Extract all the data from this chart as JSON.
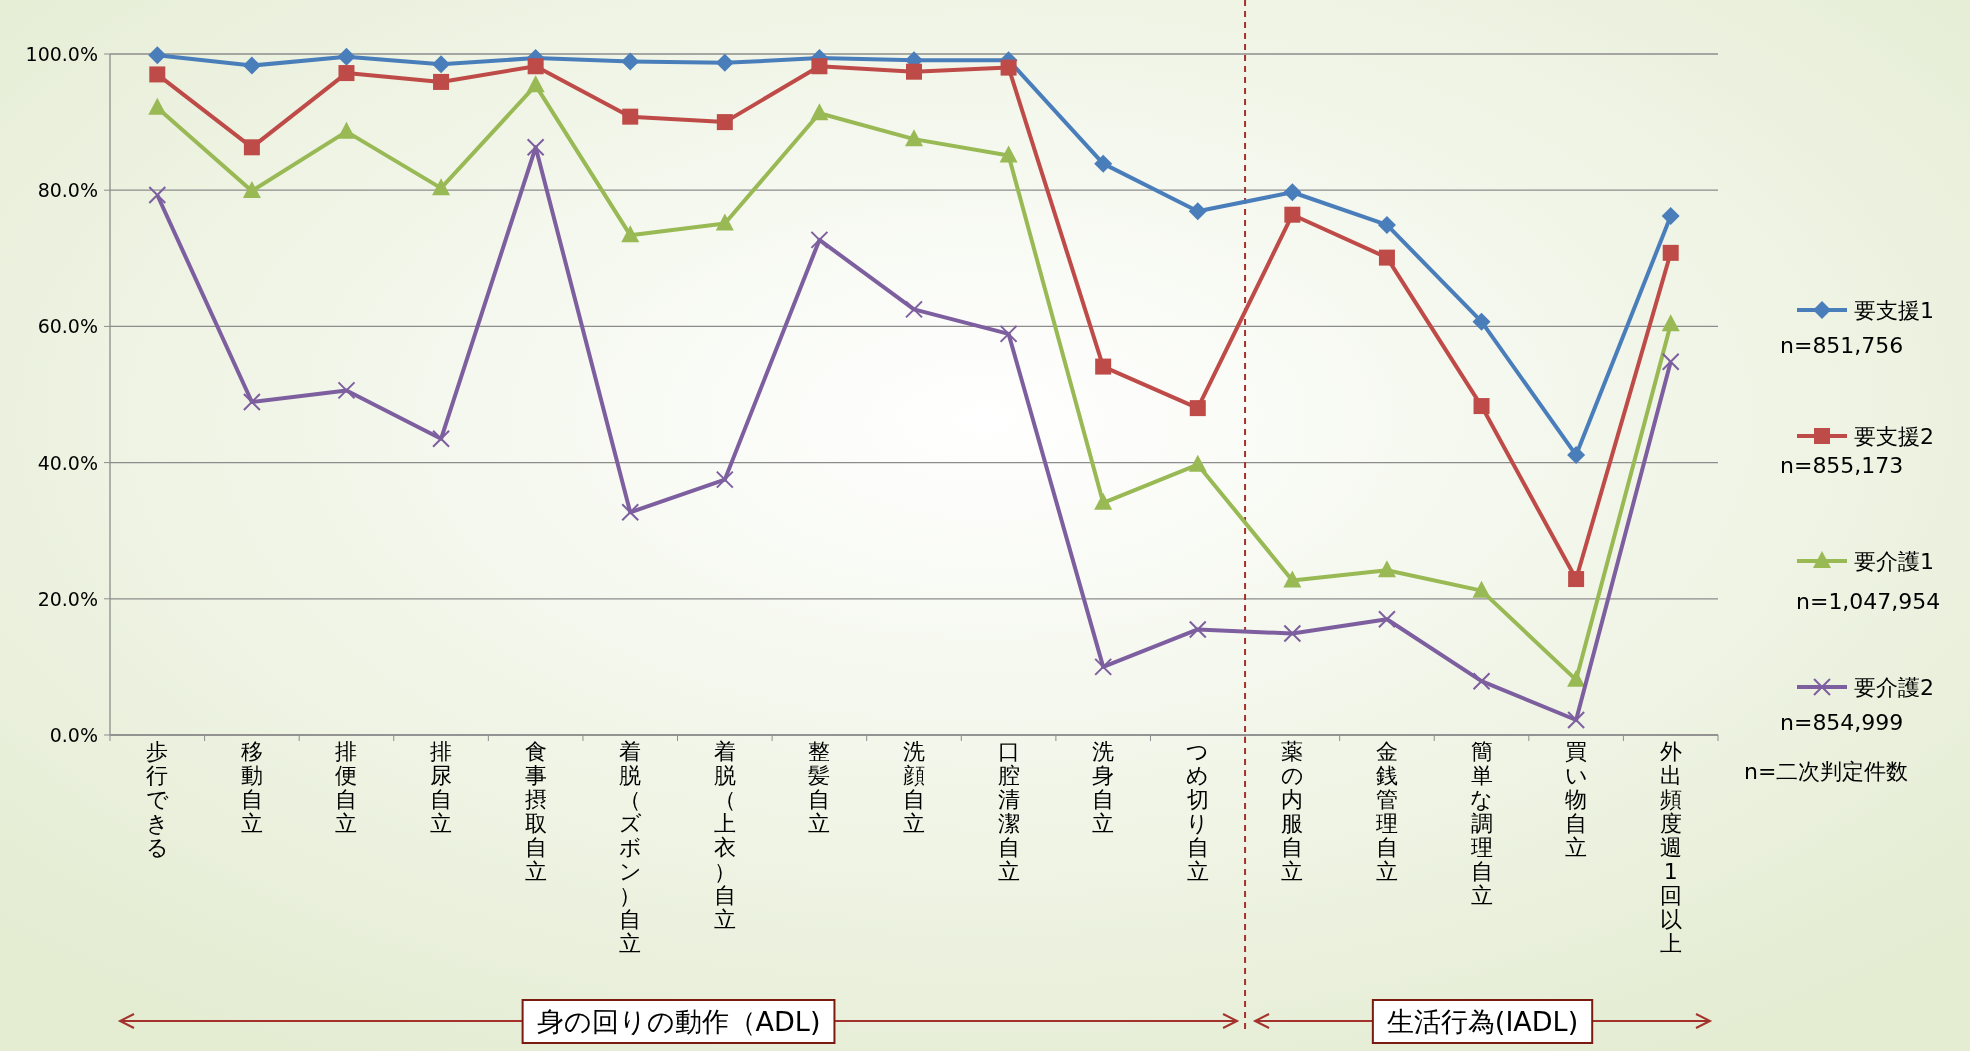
{
  "chart_data": {
    "type": "line",
    "categories": [
      "歩行できる",
      "移動自立",
      "排便自立",
      "排尿自立",
      "食事摂取自立",
      "着脱（ズボン）自立",
      "着脱（上衣）自立",
      "整髪自立",
      "洗顔自立",
      "口腔清潔自立",
      "洗身自立",
      "つめ切り自立",
      "薬の内服自立",
      "金銭管理自立",
      "簡単な調理自立",
      "買い物自立",
      "外出頻度週1回以上"
    ],
    "series": [
      {
        "name": "要支援1",
        "color": "#4a7ebb",
        "marker": "diamond",
        "values": [
          99.8,
          98.3,
          99.6,
          98.5,
          99.4,
          98.9,
          98.7,
          99.4,
          99.1,
          99.1,
          83.9,
          76.9,
          79.7,
          74.9,
          60.7,
          41.1,
          76.2
        ]
      },
      {
        "name": "要支援2",
        "color": "#be4b48",
        "marker": "square",
        "values": [
          97.0,
          86.3,
          97.2,
          95.9,
          98.2,
          90.8,
          90.0,
          98.2,
          97.4,
          98.0,
          54.1,
          48.0,
          76.4,
          70.1,
          48.3,
          22.9,
          70.8
        ]
      },
      {
        "name": "要介護1",
        "color": "#98b954",
        "marker": "triangle",
        "values": [
          92.1,
          79.9,
          88.6,
          80.3,
          95.4,
          73.4,
          75.1,
          91.3,
          87.5,
          85.1,
          34.1,
          39.7,
          22.7,
          24.2,
          21.2,
          8.1,
          60.3
        ]
      },
      {
        "name": "要介護2",
        "color": "#7d5fa0",
        "marker": "cross",
        "values": [
          79.3,
          48.9,
          50.6,
          43.5,
          86.3,
          32.7,
          37.5,
          72.7,
          62.5,
          58.9,
          10.0,
          15.5,
          14.9,
          17.0,
          7.9,
          2.2,
          54.8
        ]
      }
    ],
    "ylim": [
      0,
      100
    ],
    "yticks": [
      {
        "value": 0,
        "label": "0.0%"
      },
      {
        "value": 20,
        "label": "20.0%"
      },
      {
        "value": 40,
        "label": "40.0%"
      },
      {
        "value": 60,
        "label": "60.0%"
      },
      {
        "value": 80,
        "label": "80.0%"
      },
      {
        "value": 100,
        "label": "100.0%"
      }
    ],
    "ref_lines": [
      {
        "axis": "x",
        "value": "つめ切り自立",
        "color": "#a3322c",
        "line_style": "dashed"
      }
    ],
    "grid": "y",
    "legend": "right",
    "annotations": [
      "n=851,756",
      "n=855,173",
      "n=1,047,954",
      "n=854,999",
      "n=二次判定件数",
      "身の回りの動作（ADL)",
      "生活行為(IADL)"
    ]
  }
}
